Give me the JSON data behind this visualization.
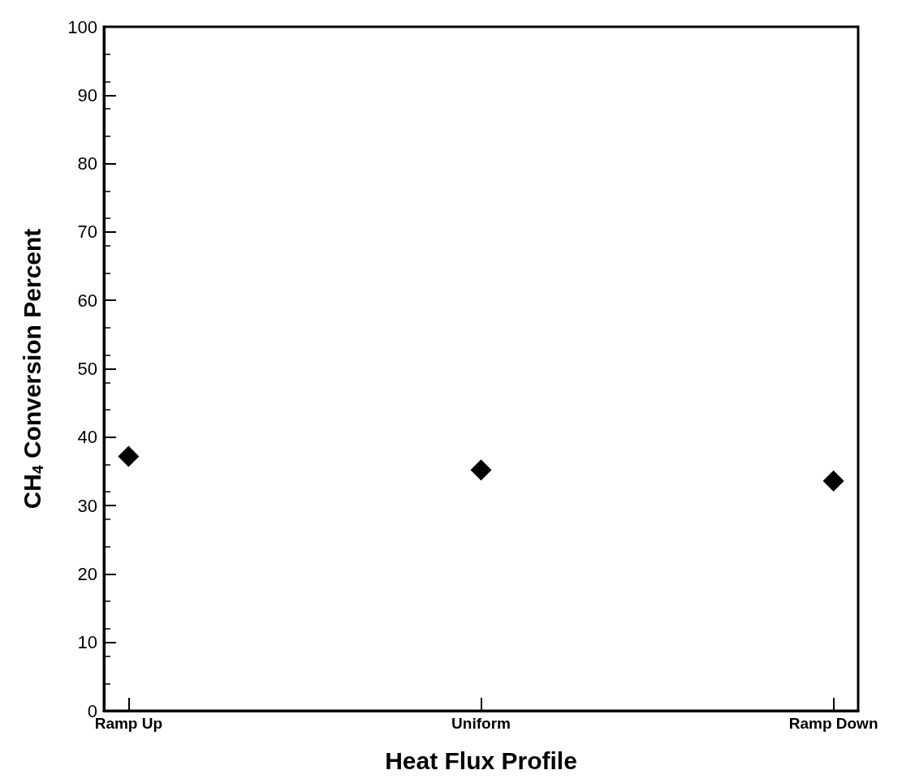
{
  "chart_data": {
    "type": "scatter",
    "xlabel": "Heat Flux Profile",
    "ylabel": "CH$_{4}$ Conversion Percent",
    "categories": [
      "Ramp Up",
      "Uniform",
      "Ramp Down"
    ],
    "values": [
      37.2,
      35.2,
      33.6
    ],
    "color": "#000000",
    "marker": "diamond",
    "ylim": [
      0,
      100
    ],
    "yticks": [
      0,
      10,
      20,
      30,
      40,
      50,
      60,
      70,
      80,
      90,
      100
    ],
    "grid": false
  }
}
